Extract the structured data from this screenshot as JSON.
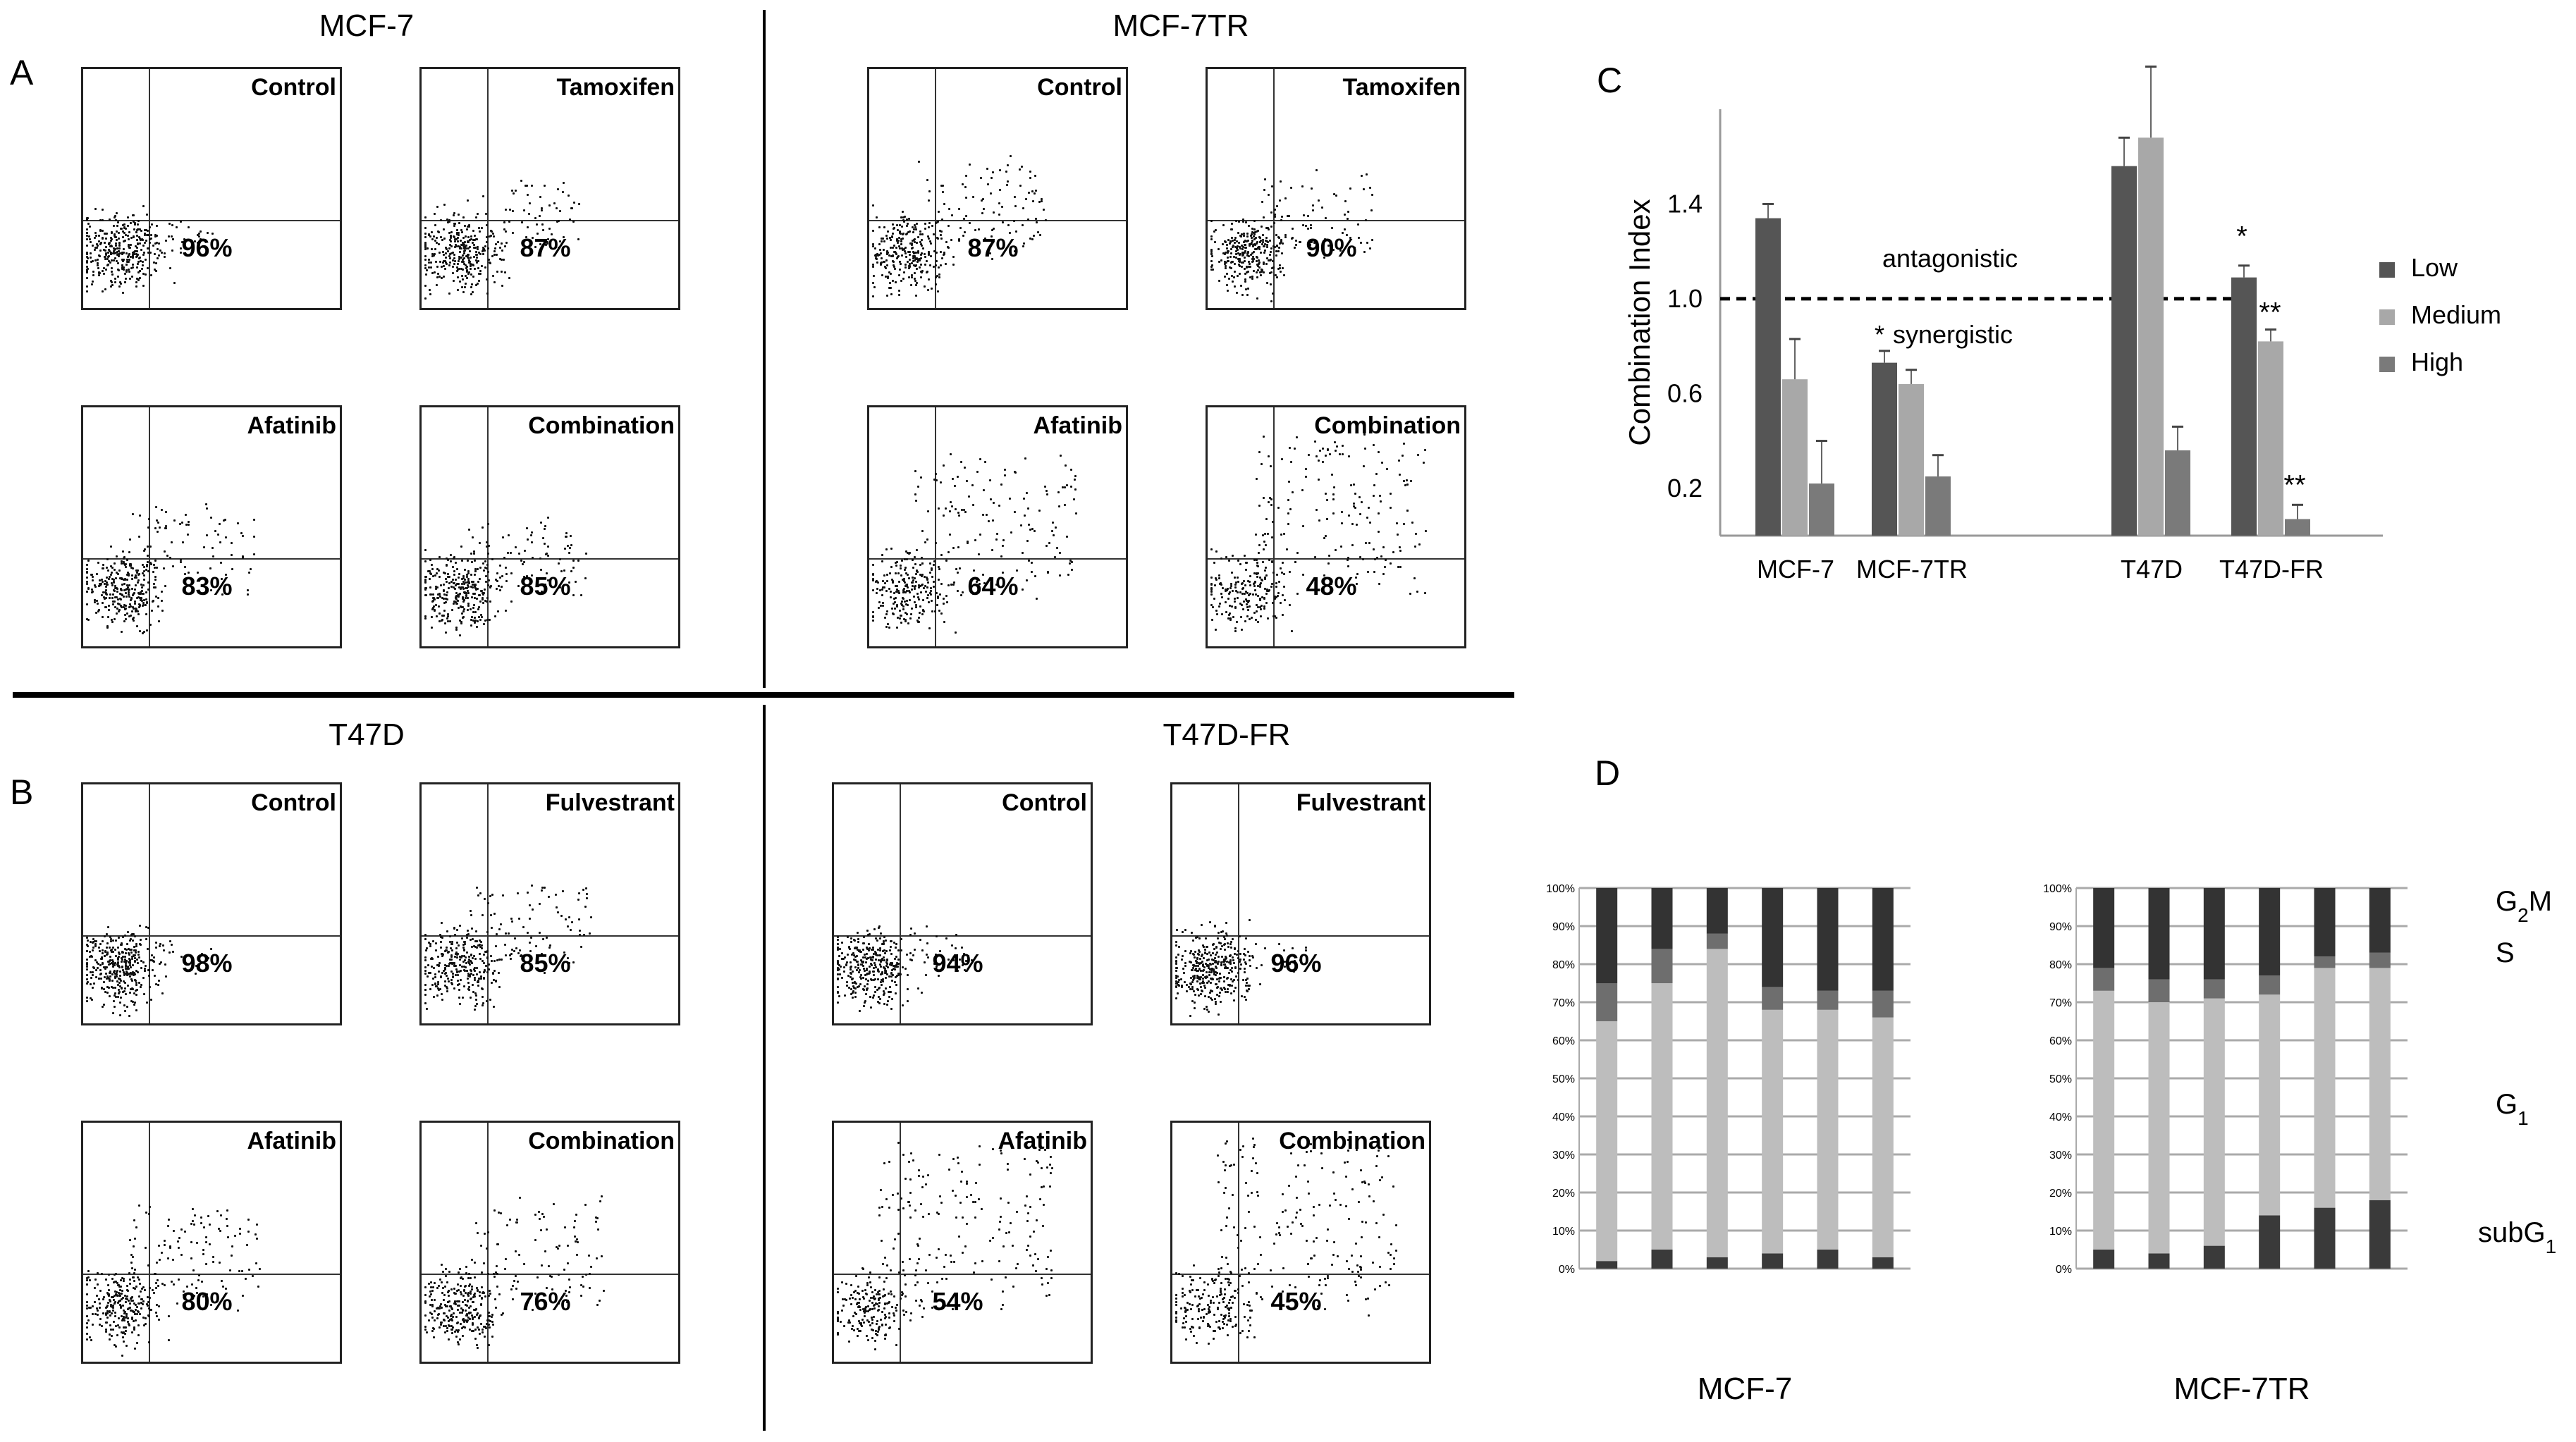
{
  "panels": {
    "A": {
      "letter": "A",
      "cells": [
        {
          "title": "MCF-7",
          "plots": [
            {
              "label": "Control",
              "pct": "96%",
              "spread": 0.15
            },
            {
              "label": "Tamoxifen",
              "pct": "87%",
              "spread": 0.35
            },
            {
              "label": "Afatinib",
              "pct": "83%",
              "spread": 0.45
            },
            {
              "label": "Combination",
              "pct": "85%",
              "spread": 0.4
            }
          ]
        },
        {
          "title": "MCF-7TR",
          "plots": [
            {
              "label": "Control",
              "pct": "87%",
              "spread": 0.5
            },
            {
              "label": "Tamoxifen",
              "pct": "90%",
              "spread": 0.4
            },
            {
              "label": "Afatinib",
              "pct": "64%",
              "spread": 0.75
            },
            {
              "label": "Combination",
              "pct": "48%",
              "spread": 0.85
            }
          ]
        }
      ]
    },
    "B": {
      "letter": "B",
      "cells": [
        {
          "title": "T47D",
          "plots": [
            {
              "label": "Control",
              "pct": "98%",
              "spread": 0.1
            },
            {
              "label": "Fulvestrant",
              "pct": "85%",
              "spread": 0.45
            },
            {
              "label": "Afatinib",
              "pct": "80%",
              "spread": 0.5
            },
            {
              "label": "Combination",
              "pct": "76%",
              "spread": 0.55
            }
          ]
        },
        {
          "title": "T47D-FR",
          "plots": [
            {
              "label": "Control",
              "pct": "94%",
              "spread": 0.2
            },
            {
              "label": "Fulvestrant",
              "pct": "96%",
              "spread": 0.15
            },
            {
              "label": "Afatinib",
              "pct": "54%",
              "spread": 0.85
            },
            {
              "label": "Combination",
              "pct": "45%",
              "spread": 0.9
            }
          ]
        }
      ]
    },
    "C": {
      "letter": "C"
    },
    "D": {
      "letter": "D"
    }
  },
  "chart_data": [
    {
      "type": "bar",
      "panel": "C",
      "ylabel": "Combination Index",
      "yticks": [
        "1.4",
        "1.0",
        "0.6",
        "0.2"
      ],
      "ylim": [
        0,
        1.8
      ],
      "categories": [
        "MCF-7",
        "MCF-7TR",
        "T47D",
        "T47D-FR"
      ],
      "series": [
        {
          "name": "Low",
          "color": "#555555",
          "values": [
            1.34,
            0.73,
            1.56,
            1.09
          ],
          "errors": [
            0.06,
            0.05,
            0.12,
            0.05
          ]
        },
        {
          "name": "Medium",
          "color": "#a8a8a8",
          "values": [
            0.66,
            0.64,
            1.68,
            0.82
          ],
          "errors": [
            0.17,
            0.06,
            0.3,
            0.05
          ]
        },
        {
          "name": "High",
          "color": "#7a7a7a",
          "values": [
            0.22,
            0.25,
            0.36,
            0.07
          ],
          "errors": [
            0.18,
            0.09,
            0.1,
            0.06
          ]
        }
      ],
      "reference_line": 1.0,
      "annotations": {
        "antagonistic": "antagonistic",
        "synergistic": "synergistic",
        "star": "*",
        "double_star": "**"
      }
    },
    {
      "type": "stacked-bar",
      "panel": "D",
      "yticks": [
        "100%",
        "90%",
        "80%",
        "70%",
        "60%",
        "50%",
        "40%",
        "30%",
        "20%",
        "10%",
        "0%"
      ],
      "phase_labels": {
        "g2m_base": "G",
        "g2m_sub": "2",
        "g2m_rest": "M",
        "s": "S",
        "g1_base": "G",
        "g1_sub": "1",
        "subg1_base": "subG",
        "subg1_sub": "1"
      },
      "groups": [
        {
          "name": "MCF-7",
          "bars": [
            {
              "subG1": 2,
              "G1": 63,
              "S": 10,
              "G2M": 25
            },
            {
              "subG1": 5,
              "G1": 70,
              "S": 9,
              "G2M": 16
            },
            {
              "subG1": 3,
              "G1": 81,
              "S": 4,
              "G2M": 12
            },
            {
              "subG1": 4,
              "G1": 64,
              "S": 6,
              "G2M": 26
            },
            {
              "subG1": 5,
              "G1": 63,
              "S": 5,
              "G2M": 27
            },
            {
              "subG1": 3,
              "G1": 63,
              "S": 7,
              "G2M": 27
            }
          ]
        },
        {
          "name": "MCF-7TR",
          "bars": [
            {
              "subG1": 5,
              "G1": 68,
              "S": 6,
              "G2M": 21
            },
            {
              "subG1": 4,
              "G1": 66,
              "S": 6,
              "G2M": 24
            },
            {
              "subG1": 6,
              "G1": 65,
              "S": 5,
              "G2M": 24
            },
            {
              "subG1": 14,
              "G1": 58,
              "S": 5,
              "G2M": 23
            },
            {
              "subG1": 16,
              "G1": 63,
              "S": 3,
              "G2M": 18
            },
            {
              "subG1": 18,
              "G1": 61,
              "S": 4,
              "G2M": 17
            }
          ]
        }
      ],
      "colors": {
        "subG1": "#3a3a3a",
        "G1": "#bdbdbd",
        "S": "#6e6e6e",
        "G2M": "#333333"
      }
    }
  ]
}
